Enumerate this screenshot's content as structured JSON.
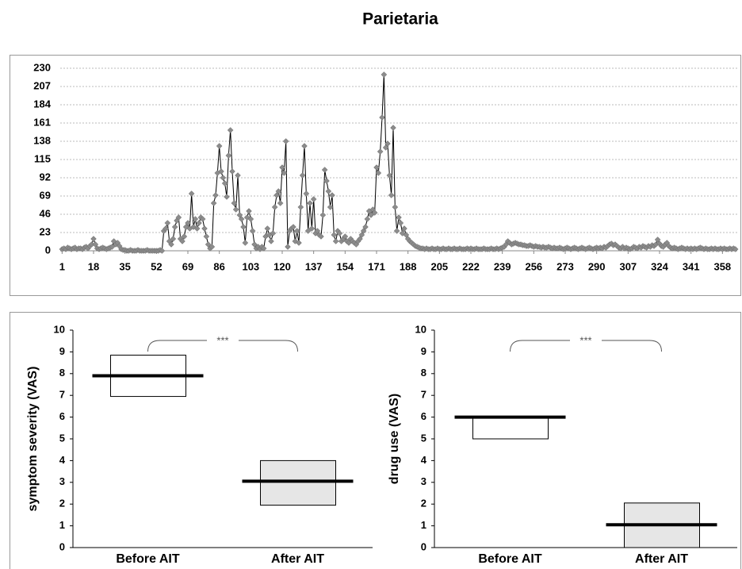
{
  "chart_data": [
    {
      "type": "line",
      "title": "Parietaria",
      "color": "#8c8c8c",
      "line_color": "#000000",
      "grid": true,
      "x": [
        1,
        2,
        3,
        4,
        5,
        6,
        7,
        8,
        9,
        10,
        11,
        12,
        13,
        14,
        15,
        16,
        17,
        18,
        19,
        20,
        21,
        22,
        23,
        24,
        25,
        26,
        27,
        28,
        29,
        30,
        31,
        32,
        33,
        34,
        35,
        36,
        37,
        38,
        39,
        40,
        41,
        42,
        43,
        44,
        45,
        46,
        47,
        48,
        49,
        50,
        51,
        52,
        53,
        54,
        55,
        56,
        57,
        58,
        59,
        60,
        61,
        62,
        63,
        64,
        65,
        66,
        67,
        68,
        69,
        70,
        71,
        72,
        73,
        74,
        75,
        76,
        77,
        78,
        79,
        80,
        81,
        82,
        83,
        84,
        85,
        86,
        87,
        88,
        89,
        90,
        91,
        92,
        93,
        94,
        95,
        96,
        97,
        98,
        99,
        100,
        101,
        102,
        103,
        104,
        105,
        106,
        107,
        108,
        109,
        110,
        111,
        112,
        113,
        114,
        115,
        116,
        117,
        118,
        119,
        120,
        121,
        122,
        123,
        124,
        125,
        126,
        127,
        128,
        129,
        130,
        131,
        132,
        133,
        134,
        135,
        136,
        137,
        138,
        139,
        140,
        141,
        142,
        143,
        144,
        145,
        146,
        147,
        148,
        149,
        150,
        151,
        152,
        153,
        154,
        155,
        156,
        157,
        158,
        159,
        160,
        161,
        162,
        163,
        164,
        165,
        166,
        167,
        168,
        169,
        170,
        171,
        172,
        173,
        174,
        175,
        176,
        177,
        178,
        179,
        180,
        181,
        182,
        183,
        184,
        185,
        186,
        187,
        188,
        189,
        190,
        191,
        192,
        193,
        194,
        195,
        196,
        197,
        198,
        199,
        200,
        201,
        202,
        203,
        204,
        205,
        206,
        207,
        208,
        209,
        210,
        211,
        212,
        213,
        214,
        215,
        216,
        217,
        218,
        219,
        220,
        221,
        222,
        223,
        224,
        225,
        226,
        227,
        228,
        229,
        230,
        231,
        232,
        233,
        234,
        235,
        236,
        237,
        238,
        239,
        240,
        241,
        242,
        243,
        244,
        245,
        246,
        247,
        248,
        249,
        250,
        251,
        252,
        253,
        254,
        255,
        256,
        257,
        258,
        259,
        260,
        261,
        262,
        263,
        264,
        265,
        266,
        267,
        268,
        269,
        270,
        271,
        272,
        273,
        274,
        275,
        276,
        277,
        278,
        279,
        280,
        281,
        282,
        283,
        284,
        285,
        286,
        287,
        288,
        289,
        290,
        291,
        292,
        293,
        294,
        295,
        296,
        297,
        298,
        299,
        300,
        301,
        302,
        303,
        304,
        305,
        306,
        307,
        308,
        309,
        310,
        311,
        312,
        313,
        314,
        315,
        316,
        317,
        318,
        319,
        320,
        321,
        322,
        323,
        324,
        325,
        326,
        327,
        328,
        329,
        330,
        331,
        332,
        333,
        334,
        335,
        336,
        337,
        338,
        339,
        340,
        341,
        342,
        343,
        344,
        345,
        346,
        347,
        348,
        349,
        350,
        351,
        352,
        353,
        354,
        355,
        356,
        357,
        358,
        359,
        360,
        361,
        362,
        363,
        364,
        365
      ],
      "values": [
        2,
        3,
        2,
        4,
        3,
        2,
        3,
        4,
        2,
        3,
        3,
        2,
        4,
        5,
        3,
        6,
        8,
        15,
        8,
        3,
        2,
        3,
        4,
        3,
        2,
        3,
        4,
        5,
        12,
        8,
        10,
        6,
        2,
        1,
        1,
        0,
        0,
        1,
        0,
        0,
        0,
        1,
        0,
        0,
        0,
        0,
        1,
        0,
        0,
        0,
        0,
        0,
        0,
        1,
        0,
        25,
        28,
        35,
        12,
        8,
        15,
        30,
        38,
        42,
        15,
        12,
        18,
        30,
        35,
        28,
        72,
        30,
        40,
        28,
        35,
        42,
        40,
        28,
        18,
        8,
        3,
        5,
        60,
        70,
        98,
        132,
        100,
        92,
        85,
        68,
        120,
        152,
        100,
        60,
        52,
        95,
        45,
        40,
        30,
        10,
        42,
        50,
        40,
        25,
        8,
        3,
        5,
        2,
        5,
        3,
        18,
        28,
        20,
        12,
        22,
        55,
        70,
        75,
        60,
        105,
        98,
        138,
        5,
        25,
        28,
        30,
        12,
        25,
        10,
        55,
        95,
        132,
        72,
        25,
        60,
        28,
        65,
        22,
        25,
        20,
        18,
        45,
        102,
        88,
        75,
        55,
        70,
        20,
        12,
        25,
        22,
        12,
        15,
        18,
        12,
        10,
        15,
        12,
        10,
        8,
        12,
        15,
        20,
        25,
        30,
        40,
        50,
        45,
        52,
        48,
        105,
        98,
        125,
        168,
        222,
        130,
        135,
        95,
        70,
        155,
        55,
        25,
        42,
        35,
        22,
        28,
        20,
        15,
        12,
        10,
        8,
        6,
        5,
        4,
        3,
        3,
        2,
        3,
        2,
        2,
        3,
        2,
        2,
        3,
        2,
        2,
        3,
        2,
        2,
        3,
        2,
        2,
        3,
        2,
        2,
        3,
        2,
        2,
        2,
        3,
        2,
        3,
        2,
        2,
        3,
        2,
        2,
        2,
        3,
        2,
        2,
        2,
        3,
        2,
        2,
        3,
        2,
        3,
        4,
        5,
        8,
        12,
        10,
        8,
        9,
        10,
        9,
        8,
        8,
        7,
        7,
        6,
        6,
        7,
        6,
        5,
        6,
        5,
        5,
        4,
        5,
        4,
        4,
        5,
        4,
        3,
        4,
        3,
        3,
        4,
        3,
        2,
        3,
        4,
        3,
        2,
        3,
        4,
        3,
        2,
        3,
        4,
        3,
        2,
        3,
        4,
        3,
        2,
        3,
        4,
        3,
        4,
        3,
        5,
        4,
        6,
        8,
        9,
        7,
        8,
        6,
        4,
        3,
        5,
        3,
        4,
        3,
        2,
        3,
        5,
        4,
        3,
        5,
        4,
        6,
        5,
        4,
        6,
        5,
        7,
        6,
        8,
        14,
        9,
        6,
        5,
        8,
        10,
        6,
        4,
        3,
        4,
        3,
        2,
        3,
        4,
        3,
        2,
        3,
        2,
        3,
        2,
        3,
        2,
        3,
        4,
        3,
        2,
        3,
        2,
        2,
        3,
        2,
        3,
        2,
        2,
        3,
        2,
        3,
        2,
        2,
        3,
        2,
        3,
        2
      ],
      "xlim": [
        0,
        366
      ],
      "xticks": [
        1,
        18,
        35,
        52,
        69,
        86,
        103,
        120,
        137,
        154,
        171,
        188,
        205,
        222,
        239,
        256,
        273,
        290,
        307,
        324,
        341,
        358
      ],
      "ylim": [
        0,
        230
      ],
      "yticks": [
        0,
        23,
        46,
        69,
        92,
        115,
        138,
        161,
        184,
        207,
        230
      ]
    },
    {
      "type": "box",
      "ylabel": "symptom severity (VAS)",
      "categories": [
        "Before AIT",
        "After AIT"
      ],
      "q1": [
        6.95,
        1.95
      ],
      "median": [
        7.9,
        3.05
      ],
      "q3": [
        8.85,
        4.0
      ],
      "colors": [
        "#ffffff",
        "#e6e6e6"
      ],
      "annotation": "***",
      "ylim": [
        0,
        10
      ],
      "yticks": [
        0,
        1,
        2,
        3,
        4,
        5,
        6,
        7,
        8,
        9,
        10
      ]
    },
    {
      "type": "box",
      "ylabel": "drug use (VAS)",
      "categories": [
        "Before AIT",
        "After AIT"
      ],
      "q1": [
        5.0,
        0
      ],
      "median": [
        6.0,
        1.05
      ],
      "q3": [
        6.0,
        2.05
      ],
      "colors": [
        "#ffffff",
        "#e6e6e6"
      ],
      "annotation": "***",
      "ylim": [
        0,
        10
      ],
      "yticks": [
        0,
        1,
        2,
        3,
        4,
        5,
        6,
        7,
        8,
        9,
        10
      ]
    }
  ]
}
